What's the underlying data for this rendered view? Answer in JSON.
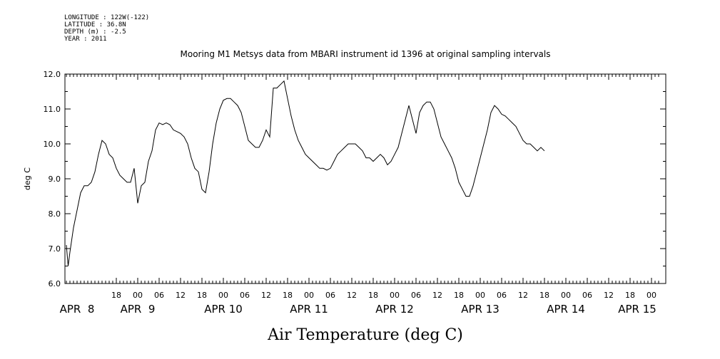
{
  "metadata": {
    "longitude": "LONGITUDE : 122W(-122)",
    "latitude": "LATITUDE : 36.8N",
    "depth": "DEPTH (m) : -2.5",
    "year": "YEAR : 2011"
  },
  "chart_data": {
    "type": "line",
    "title": "Mooring M1 Metsys data from MBARI instrument id 1396 at original sampling intervals",
    "ylabel": "deg C",
    "xlabel": "Air Temperature (deg C)",
    "ylim": [
      6.0,
      12.0
    ],
    "yticks": [
      "6.0",
      "7.0",
      "8.0",
      "9.0",
      "10.0",
      "11.0",
      "12.0"
    ],
    "xlim_hours": [
      0,
      166
    ],
    "hour_tick_labels": [
      {
        "hour": 14,
        "label": "18"
      },
      {
        "hour": 20,
        "label": "00"
      },
      {
        "hour": 26,
        "label": "06"
      },
      {
        "hour": 32,
        "label": "12"
      },
      {
        "hour": 38,
        "label": "18"
      },
      {
        "hour": 44,
        "label": "00"
      },
      {
        "hour": 50,
        "label": "06"
      },
      {
        "hour": 56,
        "label": "12"
      },
      {
        "hour": 62,
        "label": "18"
      },
      {
        "hour": 68,
        "label": "00"
      },
      {
        "hour": 74,
        "label": "06"
      },
      {
        "hour": 80,
        "label": "12"
      },
      {
        "hour": 86,
        "label": "18"
      },
      {
        "hour": 92,
        "label": "00"
      },
      {
        "hour": 98,
        "label": "06"
      },
      {
        "hour": 104,
        "label": "12"
      },
      {
        "hour": 110,
        "label": "18"
      },
      {
        "hour": 116,
        "label": "00"
      },
      {
        "hour": 122,
        "label": "06"
      },
      {
        "hour": 128,
        "label": "12"
      },
      {
        "hour": 134,
        "label": "18"
      },
      {
        "hour": 140,
        "label": "00"
      },
      {
        "hour": 146,
        "label": "06"
      },
      {
        "hour": 152,
        "label": "12"
      },
      {
        "hour": 158,
        "label": "18"
      },
      {
        "hour": 164,
        "label": "00"
      }
    ],
    "day_labels": [
      {
        "hour": 3,
        "label": "APR  8"
      },
      {
        "hour": 20,
        "label": "APR  9"
      },
      {
        "hour": 44,
        "label": "APR 10"
      },
      {
        "hour": 68,
        "label": "APR 11"
      },
      {
        "hour": 92,
        "label": "APR 12"
      },
      {
        "hour": 116,
        "label": "APR 13"
      },
      {
        "hour": 140,
        "label": "APR 14"
      },
      {
        "hour": 160,
        "label": "APR 15"
      }
    ],
    "series": [
      {
        "points": [
          [
            0,
            7.1
          ],
          [
            0.5,
            6.5
          ],
          [
            1,
            6.9
          ],
          [
            2,
            7.6
          ],
          [
            3,
            8.1
          ],
          [
            4,
            8.6
          ],
          [
            5,
            8.8
          ],
          [
            6,
            8.8
          ],
          [
            7,
            8.9
          ],
          [
            8,
            9.2
          ],
          [
            9,
            9.7
          ],
          [
            10,
            10.1
          ],
          [
            11,
            10.0
          ],
          [
            12,
            9.7
          ],
          [
            13,
            9.6
          ],
          [
            14,
            9.3
          ],
          [
            15,
            9.1
          ],
          [
            16,
            9.0
          ],
          [
            17,
            8.9
          ],
          [
            18,
            8.9
          ],
          [
            19,
            9.3
          ],
          [
            20,
            8.3
          ],
          [
            21,
            8.8
          ],
          [
            22,
            8.9
          ],
          [
            23,
            9.5
          ],
          [
            24,
            9.8
          ],
          [
            25,
            10.4
          ],
          [
            26,
            10.6
          ],
          [
            27,
            10.55
          ],
          [
            28,
            10.6
          ],
          [
            29,
            10.55
          ],
          [
            30,
            10.4
          ],
          [
            31,
            10.35
          ],
          [
            32,
            10.3
          ],
          [
            33,
            10.2
          ],
          [
            34,
            10.0
          ],
          [
            35,
            9.6
          ],
          [
            36,
            9.3
          ],
          [
            37,
            9.2
          ],
          [
            38,
            8.7
          ],
          [
            39,
            8.6
          ],
          [
            40,
            9.2
          ],
          [
            41,
            10.0
          ],
          [
            42,
            10.6
          ],
          [
            43,
            11.0
          ],
          [
            44,
            11.25
          ],
          [
            45,
            11.3
          ],
          [
            46,
            11.3
          ],
          [
            47,
            11.2
          ],
          [
            48,
            11.1
          ],
          [
            49,
            10.9
          ],
          [
            50,
            10.5
          ],
          [
            51,
            10.1
          ],
          [
            52,
            10.0
          ],
          [
            53,
            9.9
          ],
          [
            54,
            9.9
          ],
          [
            55,
            10.1
          ],
          [
            56,
            10.4
          ],
          [
            57,
            10.2
          ],
          [
            58,
            11.6
          ],
          [
            59,
            11.6
          ],
          [
            60,
            11.7
          ],
          [
            61,
            11.8
          ],
          [
            62,
            11.3
          ],
          [
            63,
            10.8
          ],
          [
            64,
            10.4
          ],
          [
            65,
            10.1
          ],
          [
            66,
            9.9
          ],
          [
            67,
            9.7
          ],
          [
            68,
            9.6
          ],
          [
            69,
            9.5
          ],
          [
            70,
            9.4
          ],
          [
            71,
            9.3
          ],
          [
            72,
            9.3
          ],
          [
            73,
            9.25
          ],
          [
            74,
            9.3
          ],
          [
            75,
            9.5
          ],
          [
            76,
            9.7
          ],
          [
            77,
            9.8
          ],
          [
            78,
            9.9
          ],
          [
            79,
            10.0
          ],
          [
            80,
            10.0
          ],
          [
            81,
            10.0
          ],
          [
            82,
            9.9
          ],
          [
            83,
            9.8
          ],
          [
            84,
            9.6
          ],
          [
            85,
            9.6
          ],
          [
            86,
            9.5
          ],
          [
            87,
            9.6
          ],
          [
            88,
            9.7
          ],
          [
            89,
            9.6
          ],
          [
            90,
            9.4
          ],
          [
            91,
            9.5
          ],
          [
            92,
            9.7
          ],
          [
            93,
            9.9
          ],
          [
            94,
            10.3
          ],
          [
            95,
            10.7
          ],
          [
            96,
            11.1
          ],
          [
            97,
            10.7
          ],
          [
            98,
            10.3
          ],
          [
            99,
            10.9
          ],
          [
            100,
            11.1
          ],
          [
            101,
            11.2
          ],
          [
            102,
            11.2
          ],
          [
            103,
            11.0
          ],
          [
            104,
            10.6
          ],
          [
            105,
            10.2
          ],
          [
            106,
            10.0
          ],
          [
            107,
            9.8
          ],
          [
            108,
            9.6
          ],
          [
            109,
            9.3
          ],
          [
            110,
            8.9
          ],
          [
            111,
            8.7
          ],
          [
            112,
            8.5
          ],
          [
            113,
            8.5
          ],
          [
            114,
            8.8
          ],
          [
            115,
            9.2
          ],
          [
            116,
            9.6
          ],
          [
            117,
            10.0
          ],
          [
            118,
            10.4
          ],
          [
            119,
            10.9
          ],
          [
            120,
            11.1
          ],
          [
            121,
            11.0
          ],
          [
            122,
            10.85
          ],
          [
            123,
            10.8
          ],
          [
            124,
            10.7
          ],
          [
            125,
            10.6
          ],
          [
            126,
            10.5
          ],
          [
            127,
            10.3
          ],
          [
            128,
            10.1
          ],
          [
            129,
            10.0
          ],
          [
            130,
            10.0
          ],
          [
            131,
            9.9
          ],
          [
            132,
            9.8
          ],
          [
            133,
            9.9
          ],
          [
            134,
            9.8
          ]
        ]
      }
    ],
    "grid": false
  }
}
